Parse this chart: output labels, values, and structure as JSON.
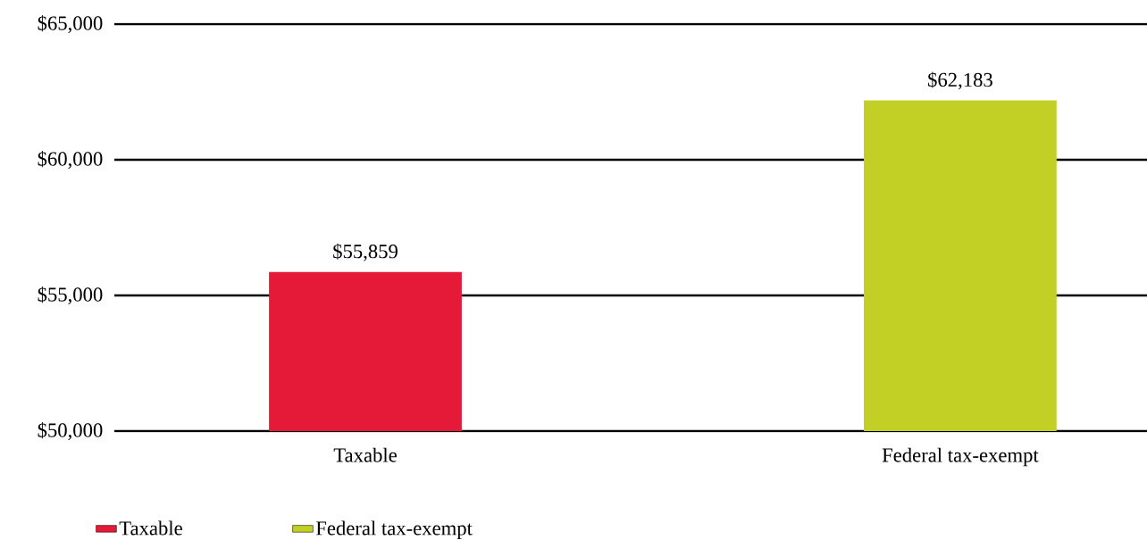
{
  "chart_data": {
    "type": "bar",
    "categories": [
      "Taxable",
      "Federal tax-exempt"
    ],
    "series": [
      {
        "name": "Taxable",
        "color": "#e51a38",
        "values": [
          55859,
          null
        ],
        "value_labels": [
          "$55,859",
          null
        ]
      },
      {
        "name": "Federal tax-exempt",
        "color": "#c2d026",
        "values": [
          null,
          62183
        ],
        "value_labels": [
          null,
          "$62,183"
        ]
      }
    ],
    "ylim": [
      50000,
      65000
    ],
    "yticks": [
      {
        "value": 50000,
        "label": "$50,000"
      },
      {
        "value": 55000,
        "label": "$55,000"
      },
      {
        "value": 60000,
        "label": "$60,000"
      },
      {
        "value": 65000,
        "label": "$65,000"
      }
    ],
    "grid": "y",
    "legend": "bottom"
  }
}
